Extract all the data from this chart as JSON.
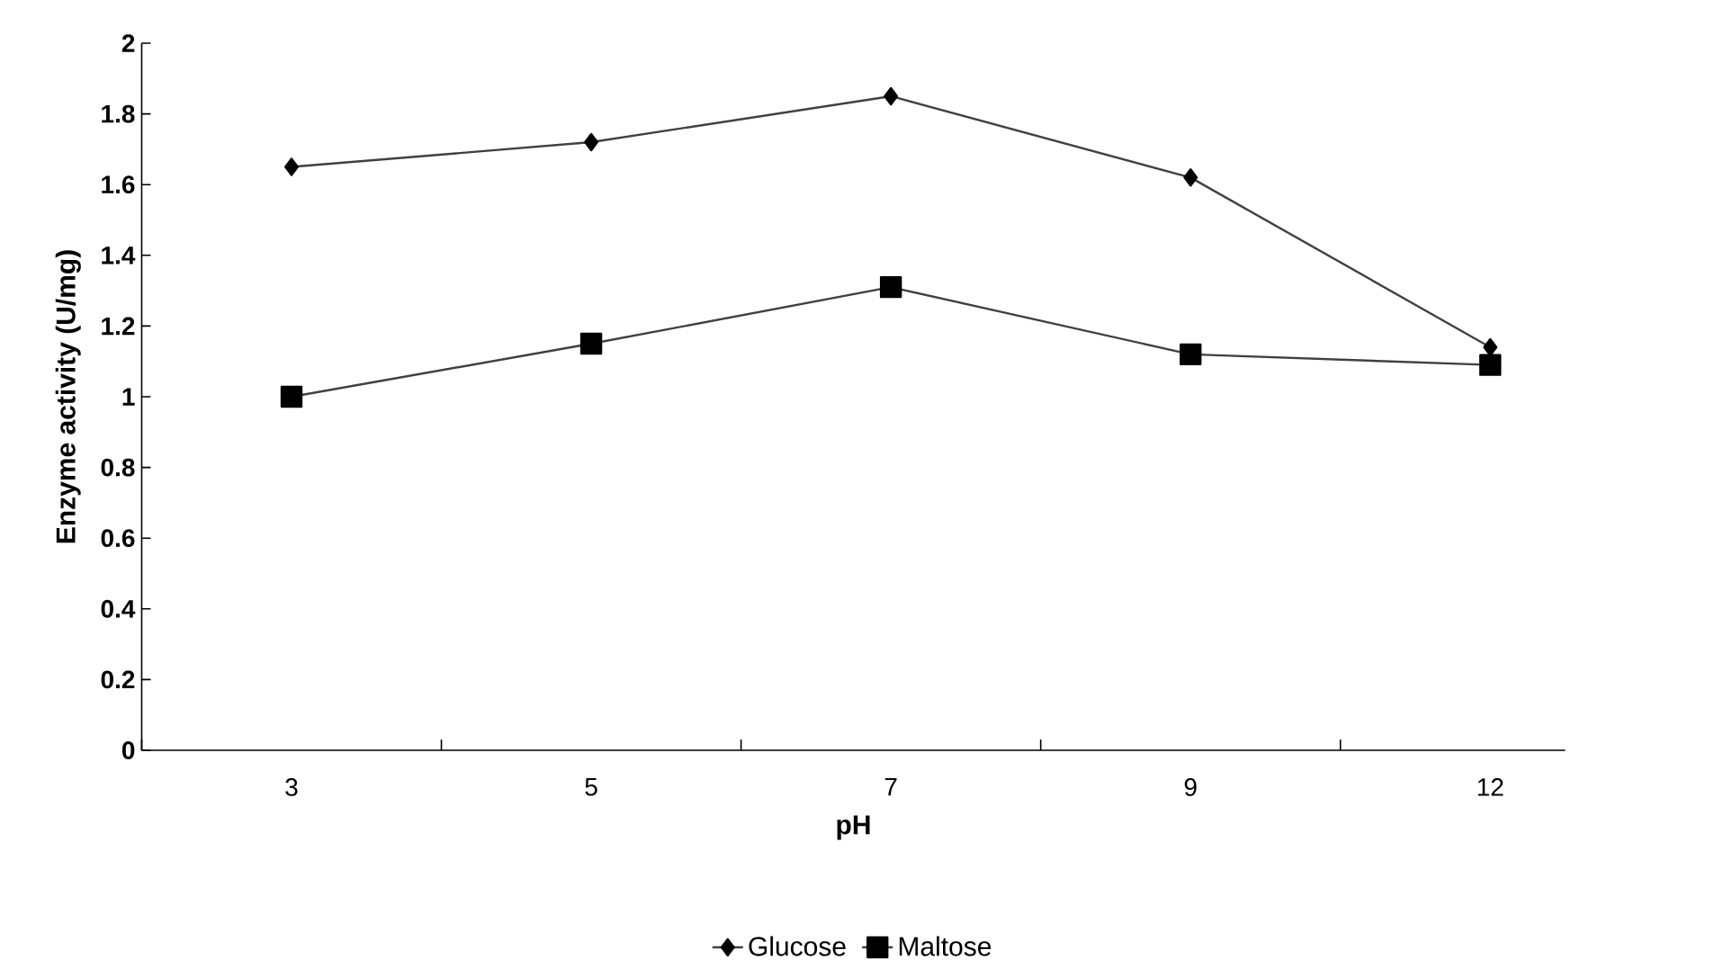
{
  "chart_data": {
    "type": "line",
    "xlabel": "pH",
    "ylabel": "Enzyme activity (U/mg)",
    "categories": [
      "3",
      "5",
      "7",
      "9",
      "12"
    ],
    "series": [
      {
        "name": "Glucose",
        "color": "#404040",
        "marker": "diamond",
        "values": [
          1.65,
          1.72,
          1.85,
          1.62,
          1.14
        ]
      },
      {
        "name": "Maltose",
        "color": "#404040",
        "marker": "square",
        "values": [
          1.0,
          1.15,
          1.31,
          1.12,
          1.09
        ]
      }
    ],
    "ylim": [
      0,
      2
    ],
    "yticks": [
      0,
      0.2,
      0.4,
      0.6,
      0.8,
      1,
      1.2,
      1.4,
      1.6,
      1.8,
      2
    ],
    "grid": false,
    "legend": "bottom",
    "line_style": "solid"
  }
}
